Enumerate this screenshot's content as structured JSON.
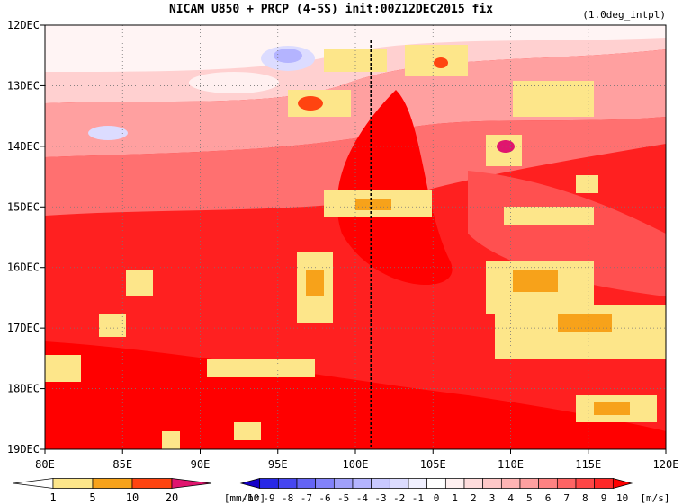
{
  "chart_data": {
    "type": "heatmap",
    "title": "NICAM  U850 + PRCP (4-5S) init:00Z12DEC2015 fix",
    "subtitle": "(1.0deg_intpl)",
    "x_ticks": [
      "80E",
      "85E",
      "90E",
      "95E",
      "100E",
      "105E",
      "110E",
      "115E",
      "120E"
    ],
    "x_range": [
      80,
      120
    ],
    "y_ticks": [
      "12DEC",
      "13DEC",
      "14DEC",
      "15DEC",
      "16DEC",
      "17DEC",
      "18DEC",
      "19DEC"
    ],
    "y_range": [
      12,
      19
    ],
    "reference_line_lon": 101,
    "grid": "dotted",
    "wind_colorbar": {
      "labels": [
        "-10",
        "-9",
        "-8",
        "-7",
        "-6",
        "-5",
        "-4",
        "-3",
        "-2",
        "-1",
        "0",
        "1",
        "2",
        "3",
        "4",
        "5",
        "6",
        "7",
        "8",
        "9",
        "10"
      ],
      "unit": "[m/s]",
      "colors": [
        "#1400c8",
        "#2828e6",
        "#4646f0",
        "#6464f5",
        "#8282fa",
        "#a0a0fa",
        "#b4b4ff",
        "#c8c8ff",
        "#dcdcff",
        "#f0f0ff",
        "#ffffff",
        "#fff0f0",
        "#ffdcdc",
        "#ffc8c8",
        "#ffb4b4",
        "#ffa0a0",
        "#ff8282",
        "#ff6464",
        "#ff4646",
        "#ff2828",
        "#ff0000"
      ]
    },
    "precip_colorbar": {
      "labels": [
        "1",
        "5",
        "10",
        "20"
      ],
      "unit": "[mm/hr]",
      "colors": [
        "#ffffff",
        "#fde68a",
        "#f7a21a",
        "#ff4410",
        "#e0156e"
      ]
    }
  }
}
